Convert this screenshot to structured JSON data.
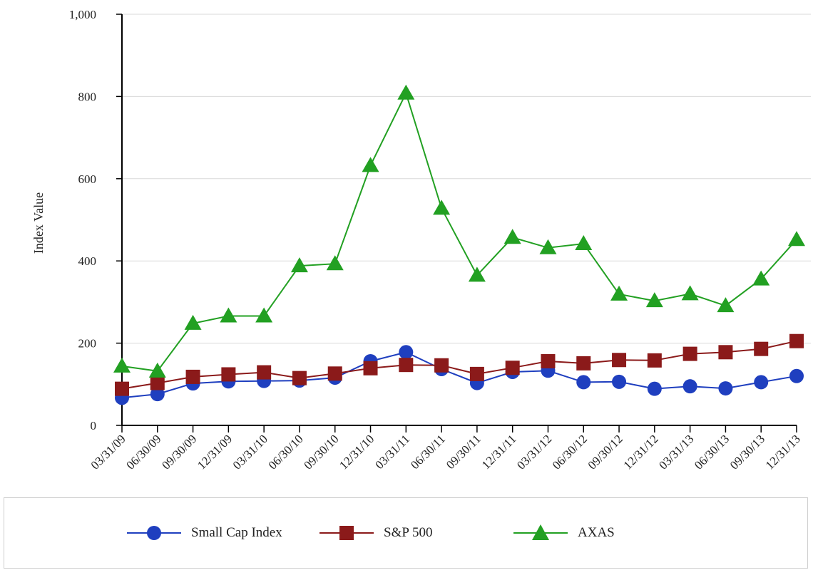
{
  "chart_data": {
    "type": "line",
    "title": "",
    "xlabel": "",
    "ylabel": "Index Value",
    "ylim": [
      0,
      1000
    ],
    "yticks": [
      0,
      200,
      400,
      600,
      800,
      1000
    ],
    "ytick_labels": [
      "0",
      "200",
      "400",
      "600",
      "800",
      "1,000"
    ],
    "categories": [
      "03/31/09",
      "06/30/09",
      "09/30/09",
      "12/31/09",
      "03/31/10",
      "06/30/10",
      "09/30/10",
      "12/31/10",
      "03/31/11",
      "06/30/11",
      "09/30/11",
      "12/31/11",
      "03/31/12",
      "06/30/12",
      "09/30/12",
      "12/31/12",
      "03/31/13",
      "06/30/13",
      "09/30/13",
      "12/31/13"
    ],
    "grid": true,
    "legend_position": "bottom",
    "series": [
      {
        "name": "Small Cap Index",
        "color": "#1f3fbf",
        "marker": "circle",
        "values": [
          67,
          76,
          102,
          107,
          108,
          109,
          116,
          156,
          178,
          137,
          103,
          130,
          133,
          105,
          106,
          89,
          95,
          90,
          105,
          120
        ]
      },
      {
        "name": "S&P 500",
        "color": "#8b1a1a",
        "marker": "square",
        "values": [
          89,
          103,
          118,
          124,
          129,
          115,
          126,
          139,
          147,
          146,
          125,
          140,
          156,
          151,
          159,
          158,
          174,
          178,
          186,
          205
        ]
      },
      {
        "name": "AXAS",
        "color": "#22a022",
        "marker": "triangle",
        "values": [
          144,
          132,
          248,
          266,
          266,
          388,
          393,
          632,
          808,
          528,
          365,
          457,
          432,
          442,
          319,
          303,
          320,
          291,
          356,
          452
        ]
      }
    ]
  }
}
